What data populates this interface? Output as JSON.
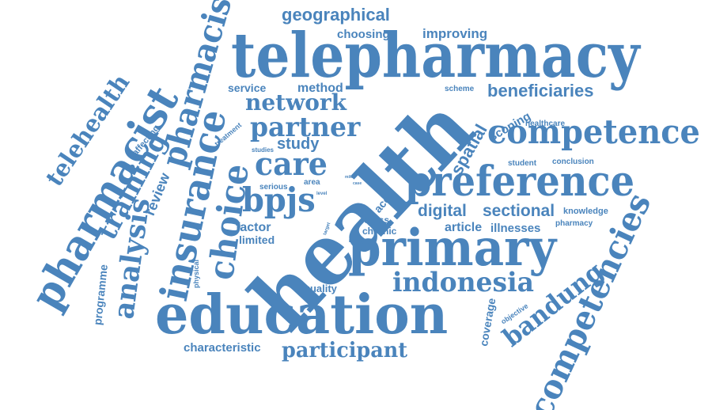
{
  "color": "#4a84bc",
  "background": "#ffffff",
  "words": {
    "telepharmacy": "telepharmacy",
    "health": "health",
    "education": "education",
    "preference": "preference",
    "primary": "primary",
    "pharmacist": "pharmacist",
    "insurance": "insurance",
    "pharmacist2": "pharmacist",
    "competence": "competence",
    "competencies": "competencies",
    "choice": "choice",
    "indonesia": "indonesia",
    "bpjs": "bpjs",
    "care": "care",
    "partner": "partner",
    "network": "network",
    "analysis": "analysis",
    "training": "training",
    "telehealth": "telehealth",
    "bandung": "bandung",
    "participant": "participant",
    "geographical": "geographical",
    "beneficiaries": "beneficiaries",
    "digital": "digital",
    "sectional": "sectional",
    "spatial": "spatial",
    "study": "study",
    "review": "review",
    "service": "service",
    "method": "method",
    "choosing": "choosing",
    "improving": "improving",
    "factor": "factor",
    "limited": "limited",
    "characteristic": "characteristic",
    "quality": "quality",
    "article": "article",
    "illnesses": "illnesses",
    "coverage": "coverage",
    "programme": "programme",
    "scoping": "scoping",
    "knowledge": "knowledge",
    "pharmacy": "pharmacy",
    "healthcare": "healthcare",
    "student": "student",
    "conclusion": "conclusion",
    "scheme": "scheme",
    "affecting": "affecting",
    "treatment": "treatment",
    "studies": "studies",
    "serious": "serious",
    "area": "area",
    "acc": "acc",
    "cross": "cross",
    "chronic": "chronic",
    "physical": "physical",
    "objective": "objective",
    "target": "target",
    "level": "level",
    "mild": "mild",
    "case": "case"
  }
}
